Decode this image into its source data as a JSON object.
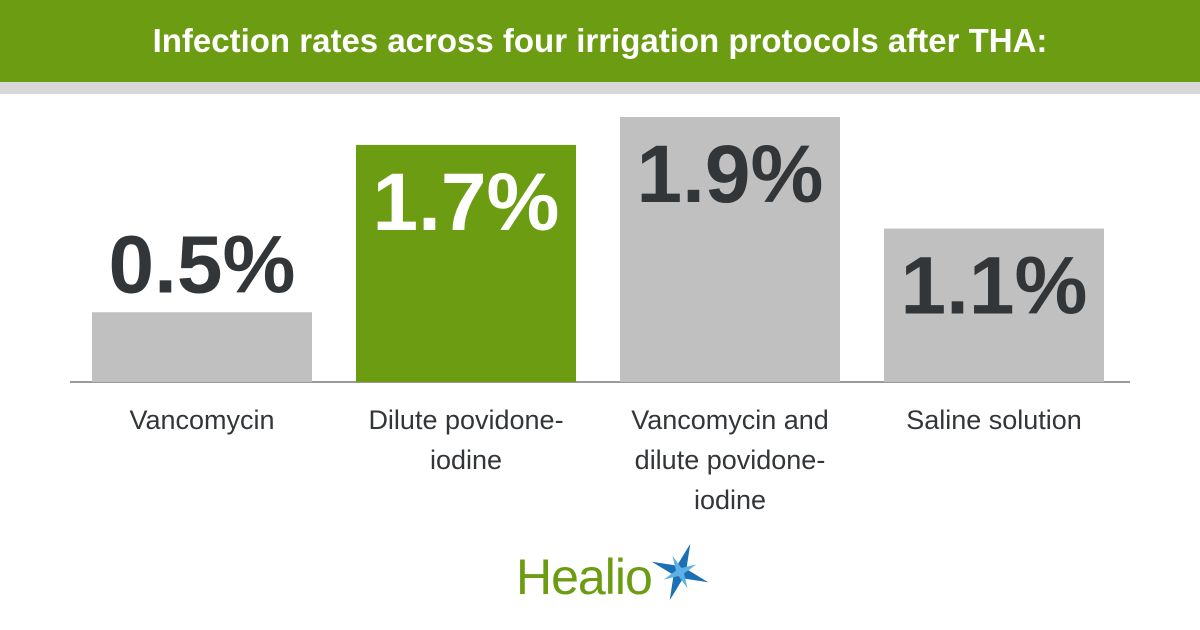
{
  "chart_data": {
    "type": "bar",
    "title": "Infection rates across four irrigation protocols after THA:",
    "categories": [
      "Vancomycin",
      "Dilute povidone-iodine",
      "Vancomycin and dilute povidone-iodine",
      "Saline solution"
    ],
    "values": [
      0.5,
      1.7,
      1.9,
      1.1
    ],
    "value_labels": [
      "0.5%",
      "1.7%",
      "1.9%",
      "1.1%"
    ],
    "colors": [
      "#c0c0c0",
      "#6b9c12",
      "#c0c0c0",
      "#c0c0c0"
    ],
    "value_label_colors": [
      "#333638",
      "#ffffff",
      "#333638",
      "#333638"
    ]
  },
  "logo": "Healio"
}
